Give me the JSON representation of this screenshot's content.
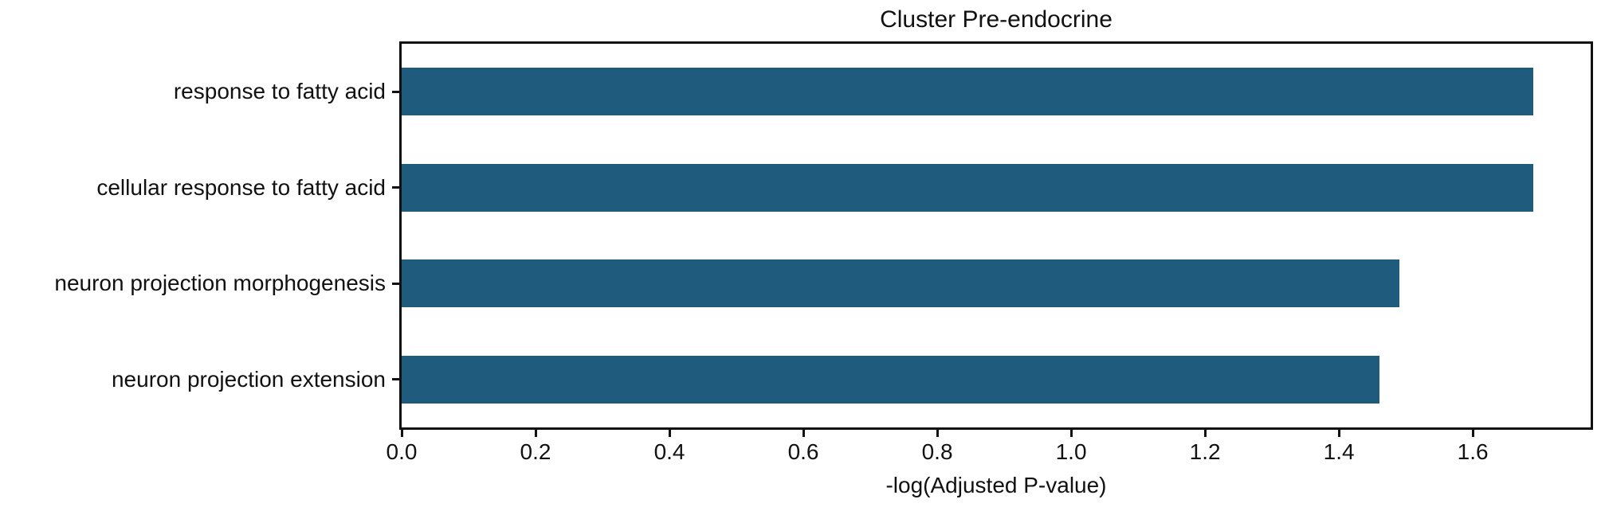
{
  "chart_data": {
    "type": "bar",
    "orientation": "horizontal",
    "title": "Cluster Pre-endocrine",
    "xlabel": "-log(Adjusted P-value)",
    "ylabel": "",
    "categories": [
      "response to fatty acid",
      "cellular response to fatty acid",
      "neuron projection morphogenesis",
      "neuron projection extension"
    ],
    "values": [
      1.69,
      1.69,
      1.49,
      1.46
    ],
    "xlim": [
      0,
      1.776
    ],
    "xticks": [
      0.0,
      0.2,
      0.4,
      0.6,
      0.8,
      1.0,
      1.2,
      1.4,
      1.6
    ],
    "xtick_decimals": 1,
    "bar_color": "#1f5b7c",
    "spine_color": "#111111",
    "grid": false,
    "legend": null
  }
}
